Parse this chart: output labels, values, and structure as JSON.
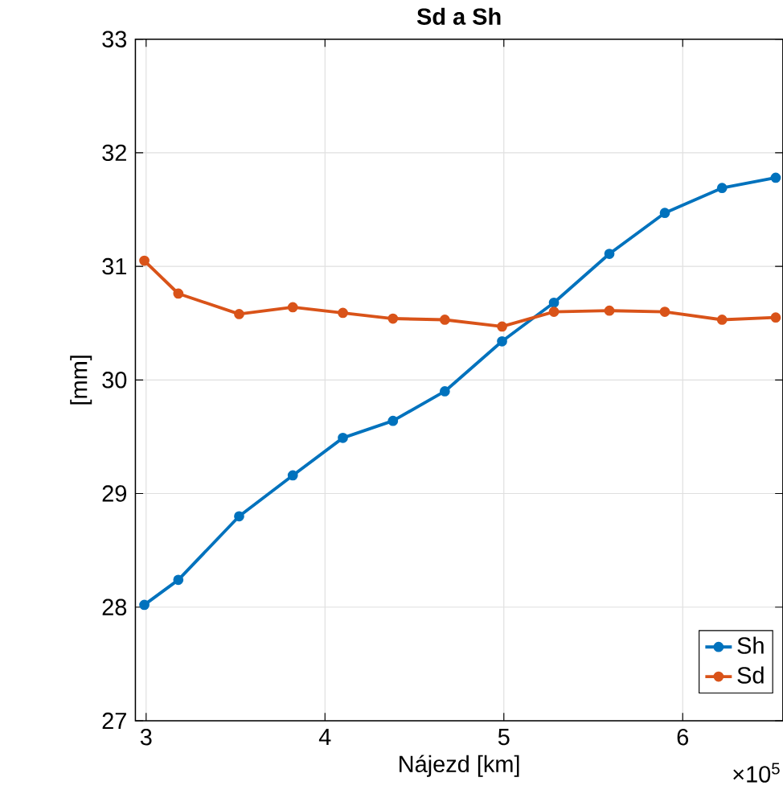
{
  "chart_data": {
    "type": "line",
    "title": "Sd a Sh",
    "xlabel": "Nájezd [km]",
    "ylabel": "[mm]",
    "x": [
      2.99,
      3.18,
      3.52,
      3.82,
      4.1,
      4.38,
      4.67,
      4.99,
      5.28,
      5.59,
      5.9,
      6.22,
      6.52
    ],
    "series": [
      {
        "name": "Sh",
        "color": "#0072bd",
        "values": [
          28.02,
          28.24,
          28.8,
          29.16,
          29.49,
          29.64,
          29.9,
          30.34,
          30.68,
          31.11,
          31.47,
          31.69,
          31.78
        ]
      },
      {
        "name": "Sd",
        "color": "#d95319",
        "values": [
          31.05,
          30.76,
          30.58,
          30.64,
          30.59,
          30.54,
          30.53,
          30.47,
          30.6,
          30.61,
          30.6,
          30.53,
          30.55
        ]
      }
    ],
    "xlim": [
      2.94,
      6.56
    ],
    "ylim": [
      27,
      33
    ],
    "xticks": [
      3,
      4,
      5,
      6
    ],
    "yticks": [
      27,
      28,
      29,
      30,
      31,
      32,
      33
    ],
    "annotations": [
      "×10$^{5}$"
    ],
    "grid": true,
    "legend": "bottom right",
    "marker": "circle",
    "line_style": "solid"
  }
}
